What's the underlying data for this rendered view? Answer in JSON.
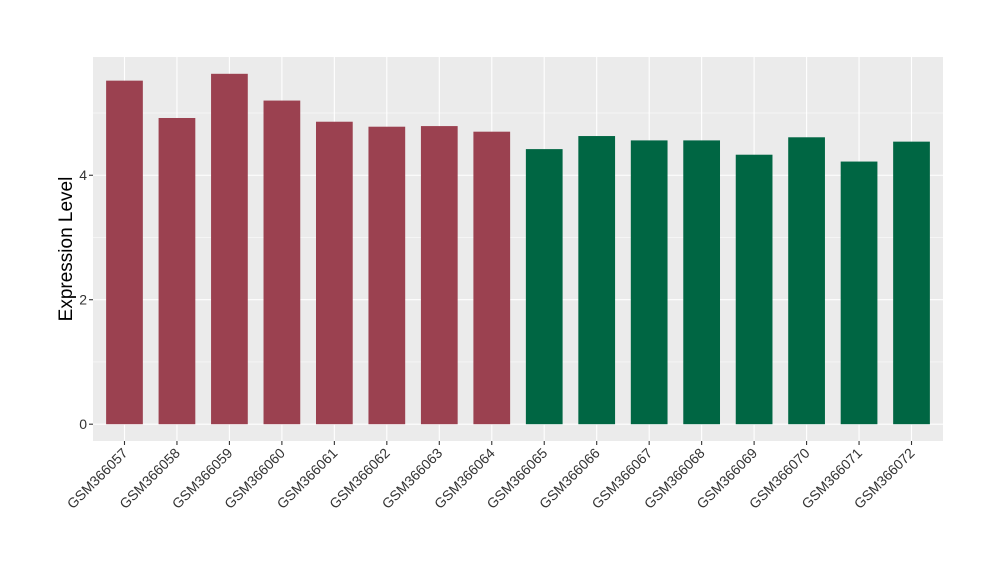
{
  "chart_data": {
    "type": "bar",
    "title": "",
    "xlabel": "",
    "ylabel": "Expression Level",
    "ylim": [
      -0.27,
      5.9
    ],
    "y_ticks": [
      0,
      2,
      4
    ],
    "grid": true,
    "legend": "none",
    "colors": {
      "group1": "#9B4150",
      "group2": "#006643",
      "panel": "#EBEBEB",
      "gridline": "#FFFFFF"
    },
    "categories": [
      "GSM366057",
      "GSM366058",
      "GSM366059",
      "GSM366060",
      "GSM366061",
      "GSM366062",
      "GSM366063",
      "GSM366064",
      "GSM366065",
      "GSM366066",
      "GSM366067",
      "GSM366068",
      "GSM366069",
      "GSM366070",
      "GSM366071",
      "GSM366072"
    ],
    "values": [
      5.52,
      4.92,
      5.63,
      5.2,
      4.86,
      4.78,
      4.79,
      4.7,
      4.42,
      4.63,
      4.56,
      4.56,
      4.33,
      4.61,
      4.22,
      4.54
    ],
    "groups": [
      1,
      1,
      1,
      1,
      1,
      1,
      1,
      1,
      2,
      2,
      2,
      2,
      2,
      2,
      2,
      2
    ]
  }
}
